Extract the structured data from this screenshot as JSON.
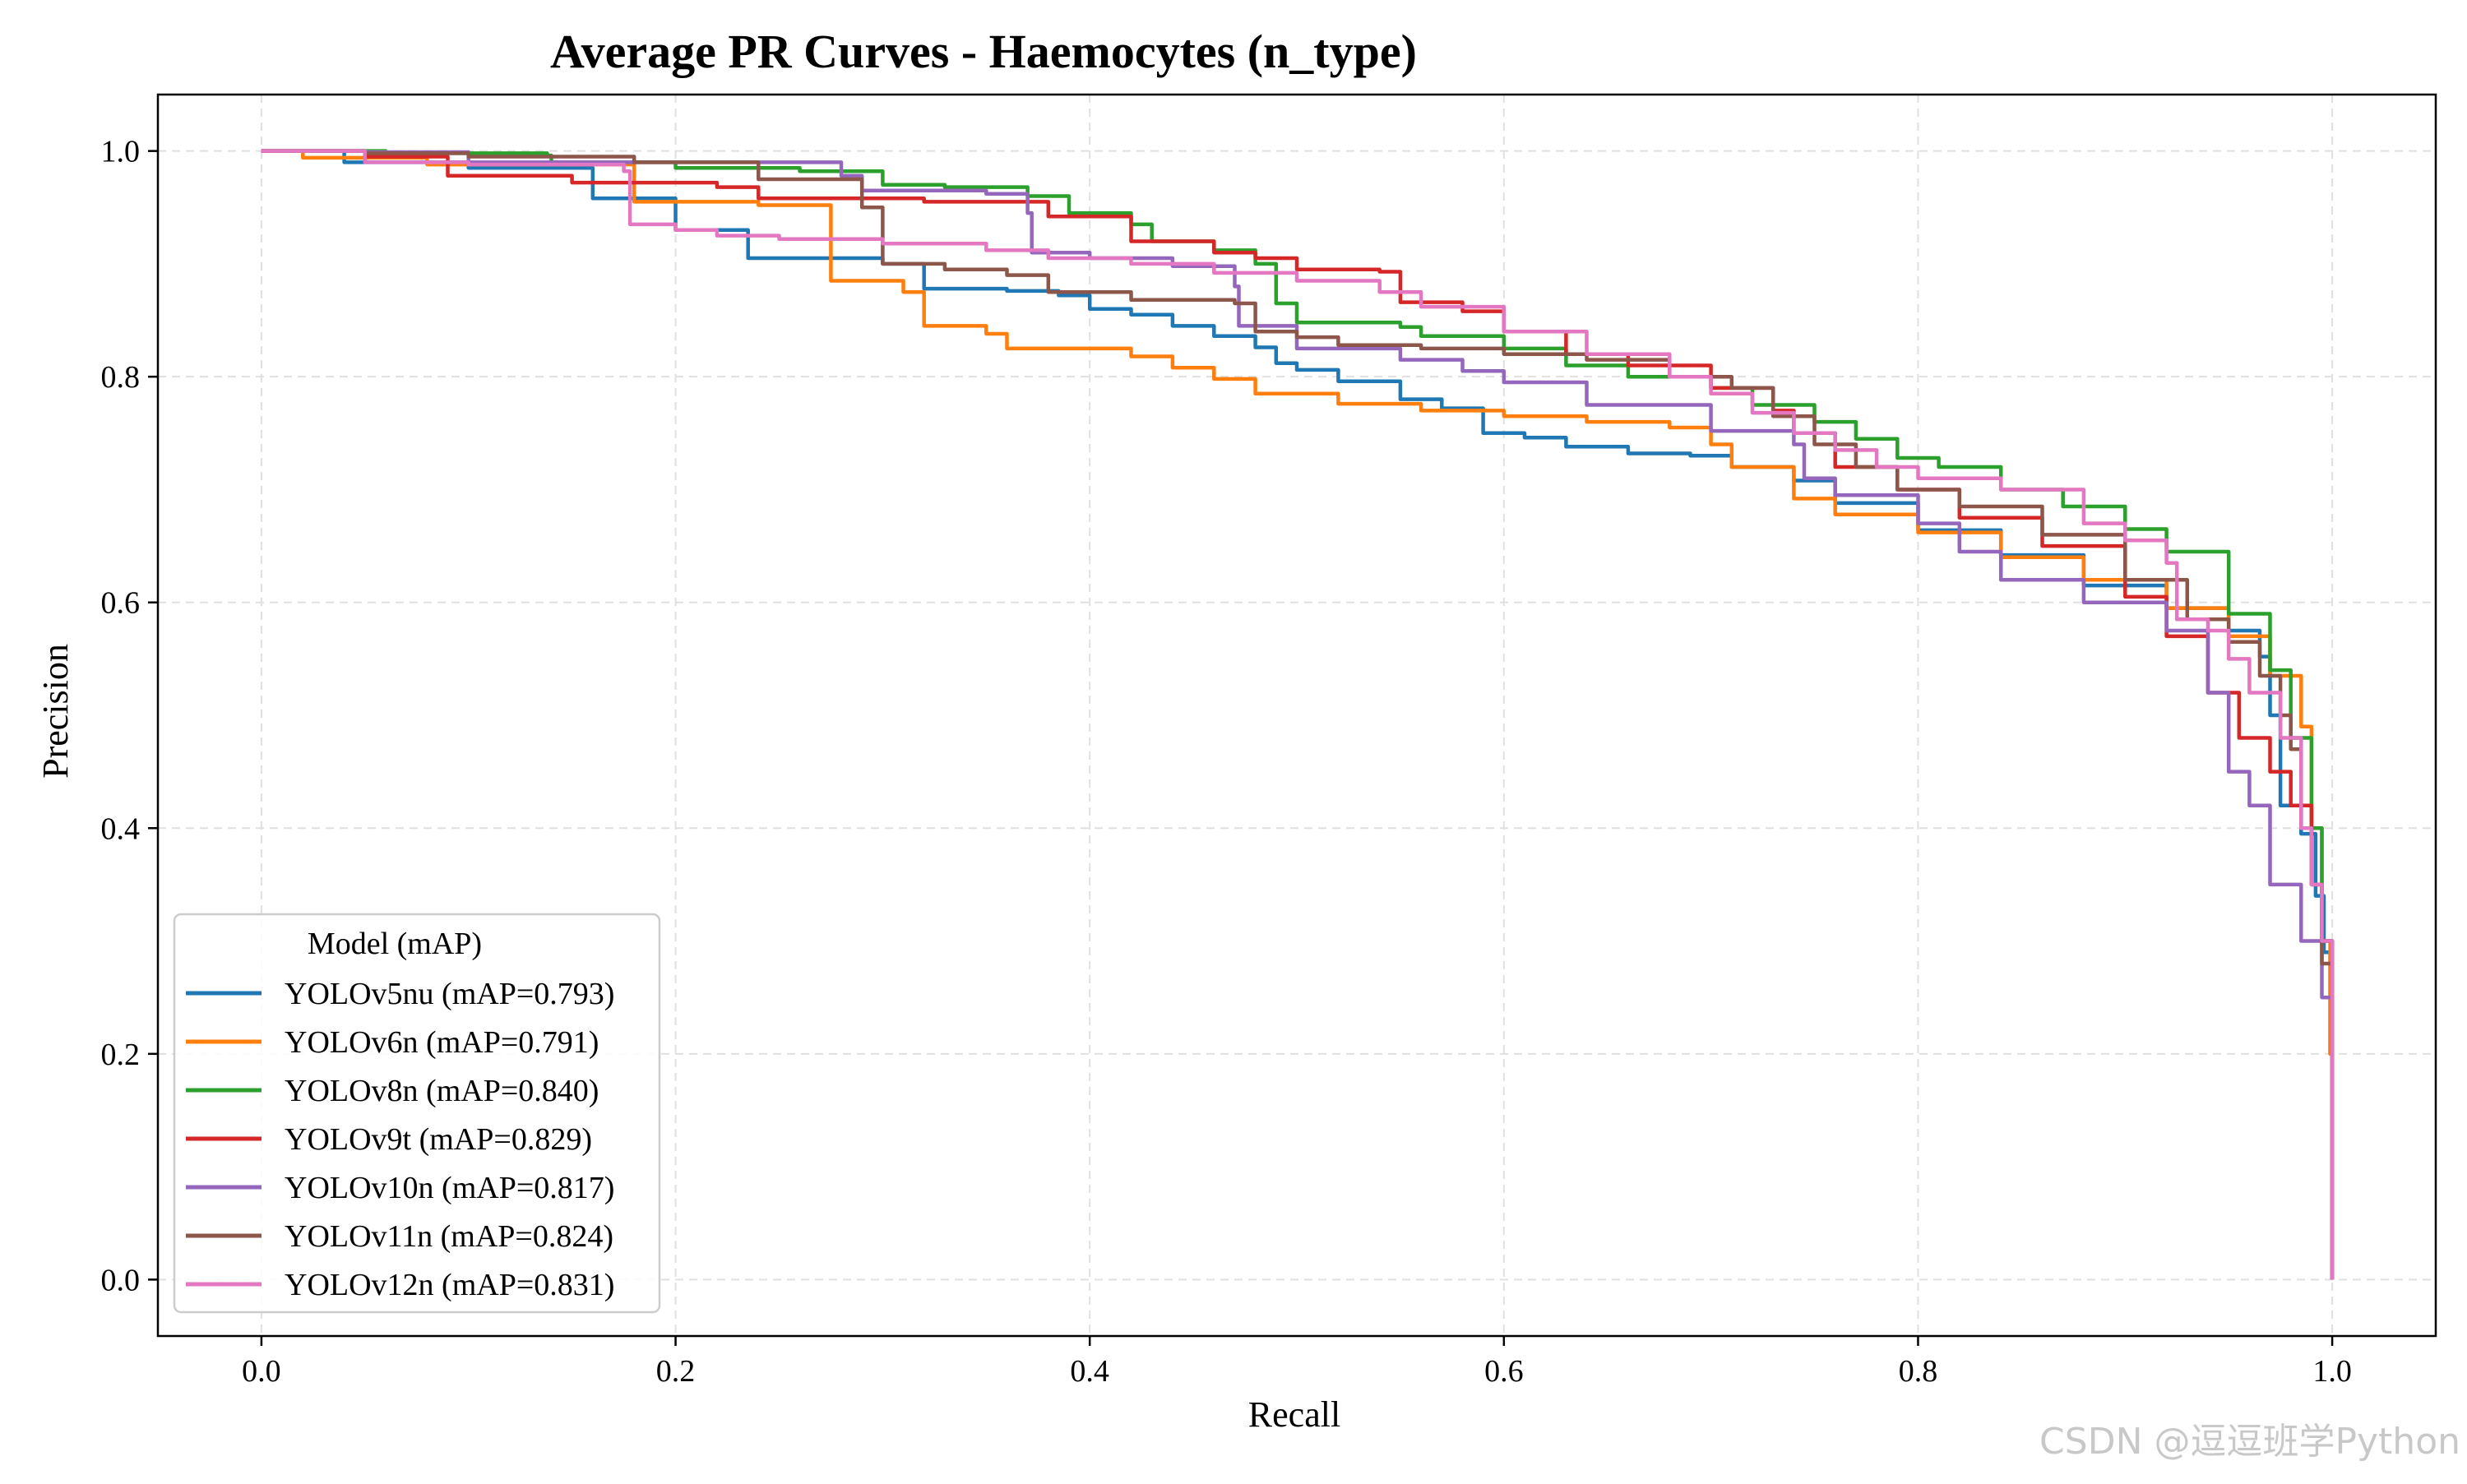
{
  "chart_data": {
    "type": "line",
    "title": "Average PR Curves - Haemocytes (n_type)",
    "xlabel": "Recall",
    "ylabel": "Precision",
    "xlim": [
      -0.05,
      1.05
    ],
    "ylim": [
      -0.05,
      1.05
    ],
    "xticks": [
      0.0,
      0.2,
      0.4,
      0.6,
      0.8,
      1.0
    ],
    "xtick_labels": [
      "0.0",
      "0.2",
      "0.4",
      "0.6",
      "0.8",
      "1.0"
    ],
    "yticks": [
      0.0,
      0.2,
      0.4,
      0.6,
      0.8,
      1.0
    ],
    "ytick_labels": [
      "0.0",
      "0.2",
      "0.4",
      "0.6",
      "0.8",
      "1.0"
    ],
    "grid": true,
    "grid_style": "dashed",
    "legend": {
      "title": "Model (mAP)",
      "position": "bottom-left"
    },
    "series": [
      {
        "name": "YOLOv5nu (mAP=0.793)",
        "color": "#1f77b4",
        "points": [
          [
            0.0,
            1.0
          ],
          [
            0.04,
            0.99
          ],
          [
            0.1,
            0.985
          ],
          [
            0.16,
            0.985
          ],
          [
            0.16,
            0.958
          ],
          [
            0.2,
            0.955
          ],
          [
            0.2,
            0.93
          ],
          [
            0.235,
            0.928
          ],
          [
            0.235,
            0.905
          ],
          [
            0.3,
            0.9
          ],
          [
            0.32,
            0.878
          ],
          [
            0.36,
            0.876
          ],
          [
            0.385,
            0.872
          ],
          [
            0.4,
            0.86
          ],
          [
            0.42,
            0.855
          ],
          [
            0.44,
            0.845
          ],
          [
            0.46,
            0.836
          ],
          [
            0.48,
            0.826
          ],
          [
            0.49,
            0.812
          ],
          [
            0.5,
            0.806
          ],
          [
            0.52,
            0.796
          ],
          [
            0.55,
            0.78
          ],
          [
            0.57,
            0.772
          ],
          [
            0.59,
            0.75
          ],
          [
            0.61,
            0.746
          ],
          [
            0.63,
            0.738
          ],
          [
            0.66,
            0.732
          ],
          [
            0.69,
            0.73
          ],
          [
            0.71,
            0.72
          ],
          [
            0.74,
            0.708
          ],
          [
            0.76,
            0.688
          ],
          [
            0.8,
            0.664
          ],
          [
            0.84,
            0.642
          ],
          [
            0.88,
            0.615
          ],
          [
            0.92,
            0.595
          ],
          [
            0.95,
            0.575
          ],
          [
            0.965,
            0.552
          ],
          [
            0.97,
            0.5
          ],
          [
            0.975,
            0.42
          ],
          [
            0.985,
            0.395
          ],
          [
            0.992,
            0.34
          ],
          [
            0.996,
            0.29
          ],
          [
            0.999,
            0.2
          ],
          [
            1.0,
            0.0
          ]
        ]
      },
      {
        "name": "YOLOv6n (mAP=0.791)",
        "color": "#ff7f0e",
        "points": [
          [
            0.0,
            1.0
          ],
          [
            0.02,
            0.994
          ],
          [
            0.08,
            0.988
          ],
          [
            0.18,
            0.985
          ],
          [
            0.18,
            0.955
          ],
          [
            0.24,
            0.952
          ],
          [
            0.275,
            0.951
          ],
          [
            0.275,
            0.885
          ],
          [
            0.31,
            0.875
          ],
          [
            0.32,
            0.845
          ],
          [
            0.35,
            0.838
          ],
          [
            0.36,
            0.825
          ],
          [
            0.42,
            0.818
          ],
          [
            0.44,
            0.808
          ],
          [
            0.46,
            0.798
          ],
          [
            0.48,
            0.785
          ],
          [
            0.52,
            0.776
          ],
          [
            0.56,
            0.77
          ],
          [
            0.6,
            0.765
          ],
          [
            0.64,
            0.76
          ],
          [
            0.68,
            0.755
          ],
          [
            0.7,
            0.74
          ],
          [
            0.71,
            0.72
          ],
          [
            0.74,
            0.692
          ],
          [
            0.76,
            0.678
          ],
          [
            0.8,
            0.662
          ],
          [
            0.84,
            0.64
          ],
          [
            0.88,
            0.62
          ],
          [
            0.92,
            0.595
          ],
          [
            0.95,
            0.57
          ],
          [
            0.97,
            0.535
          ],
          [
            0.985,
            0.49
          ],
          [
            0.99,
            0.4
          ],
          [
            0.995,
            0.3
          ],
          [
            0.999,
            0.2
          ],
          [
            1.0,
            0.0
          ]
        ]
      },
      {
        "name": "YOLOv8n (mAP=0.840)",
        "color": "#2ca02c",
        "points": [
          [
            0.0,
            1.0
          ],
          [
            0.06,
            0.998
          ],
          [
            0.138,
            0.996
          ],
          [
            0.14,
            0.99
          ],
          [
            0.2,
            0.985
          ],
          [
            0.26,
            0.982
          ],
          [
            0.3,
            0.97
          ],
          [
            0.33,
            0.968
          ],
          [
            0.37,
            0.96
          ],
          [
            0.39,
            0.945
          ],
          [
            0.42,
            0.935
          ],
          [
            0.43,
            0.92
          ],
          [
            0.46,
            0.912
          ],
          [
            0.48,
            0.9
          ],
          [
            0.49,
            0.865
          ],
          [
            0.5,
            0.848
          ],
          [
            0.55,
            0.844
          ],
          [
            0.56,
            0.836
          ],
          [
            0.6,
            0.825
          ],
          [
            0.63,
            0.81
          ],
          [
            0.66,
            0.8
          ],
          [
            0.7,
            0.79
          ],
          [
            0.72,
            0.775
          ],
          [
            0.75,
            0.76
          ],
          [
            0.77,
            0.745
          ],
          [
            0.79,
            0.728
          ],
          [
            0.81,
            0.72
          ],
          [
            0.84,
            0.7
          ],
          [
            0.87,
            0.685
          ],
          [
            0.9,
            0.665
          ],
          [
            0.92,
            0.645
          ],
          [
            0.95,
            0.59
          ],
          [
            0.97,
            0.54
          ],
          [
            0.98,
            0.48
          ],
          [
            0.99,
            0.4
          ],
          [
            0.995,
            0.3
          ],
          [
            1.0,
            0.0
          ]
        ]
      },
      {
        "name": "YOLOv9t (mAP=0.829)",
        "color": "#d62728",
        "points": [
          [
            0.0,
            1.0
          ],
          [
            0.05,
            0.995
          ],
          [
            0.09,
            0.99
          ],
          [
            0.09,
            0.978
          ],
          [
            0.15,
            0.972
          ],
          [
            0.22,
            0.968
          ],
          [
            0.24,
            0.958
          ],
          [
            0.32,
            0.955
          ],
          [
            0.38,
            0.942
          ],
          [
            0.42,
            0.92
          ],
          [
            0.46,
            0.91
          ],
          [
            0.48,
            0.905
          ],
          [
            0.5,
            0.895
          ],
          [
            0.54,
            0.893
          ],
          [
            0.55,
            0.866
          ],
          [
            0.58,
            0.858
          ],
          [
            0.6,
            0.84
          ],
          [
            0.63,
            0.82
          ],
          [
            0.66,
            0.81
          ],
          [
            0.7,
            0.79
          ],
          [
            0.73,
            0.77
          ],
          [
            0.74,
            0.75
          ],
          [
            0.76,
            0.72
          ],
          [
            0.79,
            0.7
          ],
          [
            0.82,
            0.675
          ],
          [
            0.86,
            0.65
          ],
          [
            0.9,
            0.605
          ],
          [
            0.92,
            0.57
          ],
          [
            0.94,
            0.52
          ],
          [
            0.955,
            0.48
          ],
          [
            0.97,
            0.45
          ],
          [
            0.98,
            0.42
          ],
          [
            0.99,
            0.35
          ],
          [
            0.995,
            0.3
          ],
          [
            1.0,
            0.0
          ]
        ]
      },
      {
        "name": "YOLOv10n (mAP=0.817)",
        "color": "#9467bd",
        "points": [
          [
            0.0,
            1.0
          ],
          [
            0.05,
            0.999
          ],
          [
            0.1,
            0.99
          ],
          [
            0.28,
            0.978
          ],
          [
            0.29,
            0.965
          ],
          [
            0.35,
            0.962
          ],
          [
            0.37,
            0.945
          ],
          [
            0.372,
            0.91
          ],
          [
            0.4,
            0.905
          ],
          [
            0.44,
            0.898
          ],
          [
            0.47,
            0.88
          ],
          [
            0.472,
            0.845
          ],
          [
            0.5,
            0.825
          ],
          [
            0.55,
            0.815
          ],
          [
            0.58,
            0.805
          ],
          [
            0.6,
            0.795
          ],
          [
            0.64,
            0.775
          ],
          [
            0.7,
            0.752
          ],
          [
            0.74,
            0.74
          ],
          [
            0.745,
            0.71
          ],
          [
            0.76,
            0.695
          ],
          [
            0.8,
            0.67
          ],
          [
            0.82,
            0.645
          ],
          [
            0.84,
            0.62
          ],
          [
            0.88,
            0.6
          ],
          [
            0.92,
            0.575
          ],
          [
            0.94,
            0.52
          ],
          [
            0.95,
            0.45
          ],
          [
            0.96,
            0.42
          ],
          [
            0.97,
            0.35
          ],
          [
            0.985,
            0.3
          ],
          [
            0.995,
            0.25
          ],
          [
            1.0,
            0.0
          ]
        ]
      },
      {
        "name": "YOLOv11n (mAP=0.824)",
        "color": "#8c564b",
        "points": [
          [
            0.0,
            1.0
          ],
          [
            0.05,
            0.998
          ],
          [
            0.1,
            0.995
          ],
          [
            0.18,
            0.99
          ],
          [
            0.24,
            0.975
          ],
          [
            0.29,
            0.95
          ],
          [
            0.3,
            0.9
          ],
          [
            0.33,
            0.895
          ],
          [
            0.36,
            0.89
          ],
          [
            0.38,
            0.875
          ],
          [
            0.42,
            0.868
          ],
          [
            0.47,
            0.865
          ],
          [
            0.48,
            0.84
          ],
          [
            0.5,
            0.835
          ],
          [
            0.52,
            0.828
          ],
          [
            0.56,
            0.825
          ],
          [
            0.6,
            0.82
          ],
          [
            0.64,
            0.815
          ],
          [
            0.68,
            0.8
          ],
          [
            0.71,
            0.79
          ],
          [
            0.73,
            0.765
          ],
          [
            0.75,
            0.74
          ],
          [
            0.77,
            0.72
          ],
          [
            0.79,
            0.7
          ],
          [
            0.82,
            0.685
          ],
          [
            0.86,
            0.66
          ],
          [
            0.9,
            0.62
          ],
          [
            0.93,
            0.585
          ],
          [
            0.95,
            0.565
          ],
          [
            0.965,
            0.535
          ],
          [
            0.975,
            0.5
          ],
          [
            0.98,
            0.47
          ],
          [
            0.985,
            0.4
          ],
          [
            0.99,
            0.35
          ],
          [
            0.995,
            0.28
          ],
          [
            1.0,
            0.0
          ]
        ]
      },
      {
        "name": "YOLOv12n (mAP=0.831)",
        "color": "#e377c2",
        "points": [
          [
            0.0,
            1.0
          ],
          [
            0.05,
            0.99
          ],
          [
            0.1,
            0.988
          ],
          [
            0.175,
            0.982
          ],
          [
            0.178,
            0.935
          ],
          [
            0.2,
            0.93
          ],
          [
            0.22,
            0.925
          ],
          [
            0.25,
            0.922
          ],
          [
            0.3,
            0.918
          ],
          [
            0.35,
            0.912
          ],
          [
            0.38,
            0.905
          ],
          [
            0.42,
            0.9
          ],
          [
            0.46,
            0.892
          ],
          [
            0.5,
            0.885
          ],
          [
            0.54,
            0.875
          ],
          [
            0.56,
            0.862
          ],
          [
            0.6,
            0.84
          ],
          [
            0.64,
            0.82
          ],
          [
            0.68,
            0.8
          ],
          [
            0.7,
            0.785
          ],
          [
            0.72,
            0.768
          ],
          [
            0.74,
            0.75
          ],
          [
            0.76,
            0.735
          ],
          [
            0.78,
            0.72
          ],
          [
            0.8,
            0.71
          ],
          [
            0.84,
            0.7
          ],
          [
            0.88,
            0.67
          ],
          [
            0.9,
            0.655
          ],
          [
            0.92,
            0.635
          ],
          [
            0.925,
            0.585
          ],
          [
            0.94,
            0.575
          ],
          [
            0.95,
            0.55
          ],
          [
            0.96,
            0.52
          ],
          [
            0.975,
            0.48
          ],
          [
            0.985,
            0.4
          ],
          [
            0.99,
            0.35
          ],
          [
            0.995,
            0.3
          ],
          [
            1.0,
            0.0
          ]
        ]
      }
    ]
  },
  "watermark": "CSDN @逗逗班学Python"
}
